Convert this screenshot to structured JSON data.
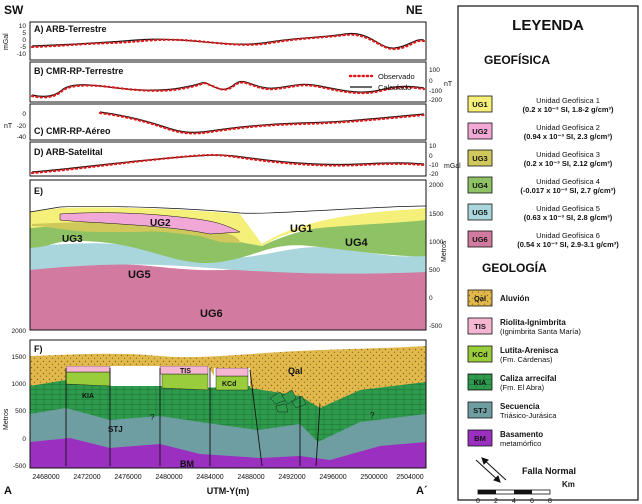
{
  "corners": {
    "left": "SW",
    "right": "NE",
    "bottom_left": "A",
    "bottom_right": "A´"
  },
  "panels": {
    "a": {
      "title": "A) ARB-Terrestre",
      "unit": "mGal",
      "ticks": [
        "10",
        "5",
        "0",
        "-5",
        "-10"
      ]
    },
    "b": {
      "title": "B) CMR-RP-Terrestre",
      "unit": "nT",
      "ticks": [
        "100",
        "0",
        "-100",
        "-200"
      ]
    },
    "c": {
      "title": "C) CMR-RP-Aéreo",
      "unit": "nT",
      "ticks": [
        "0",
        "-20",
        "-40"
      ]
    },
    "d": {
      "title": "D) ARB-Satelital",
      "unit": "mGal",
      "ticks": [
        "10",
        "0",
        "-10",
        "-20"
      ]
    },
    "e": {
      "title": "E)",
      "unit": "Metros",
      "ticks_left": [
        "2000"
      ],
      "ticks_right": [
        "2000",
        "1500",
        "1000",
        "500",
        "0",
        "-500"
      ],
      "labels": [
        "UG1",
        "UG2",
        "UG3",
        "UG4",
        "UG5",
        "UG6"
      ]
    },
    "f": {
      "title": "F)",
      "unit": "Metros",
      "ticks_left": [
        "1500",
        "1000",
        "500",
        "0",
        "-500"
      ],
      "labels": [
        "Qal",
        "TIS",
        "KCd",
        "KIA",
        "STJ",
        "BM"
      ],
      "query": "?"
    }
  },
  "x_axis": {
    "label": "UTM-Y(m)",
    "ticks": [
      "2468000",
      "2472000",
      "2476000",
      "2480000",
      "2484000",
      "2488000",
      "2492000",
      "2496000",
      "2500000",
      "2504000"
    ]
  },
  "legend": {
    "title": "LEYENDA",
    "geofisica_title": "GEOFÍSICA",
    "observed": "Observado",
    "calculated": "Calculado",
    "units": [
      {
        "code": "UG1",
        "line1": "Unidad Geofísica 1",
        "line2": "(0.2 x 10⁻³ SI, 1.8-2 g/cm³)",
        "color": "#f5f07a"
      },
      {
        "code": "UG2",
        "line1": "Unidad Geofísica 2",
        "line2": "(0.94 x 10⁻³ SI, 2.3 g/cm³)",
        "color": "#f2a8d6"
      },
      {
        "code": "UG3",
        "line1": "Unidad Geofísica 3",
        "line2": "(0.2 x 10⁻³ SI, 2.12 g/cm³)",
        "color": "#cfc85a"
      },
      {
        "code": "UG4",
        "line1": "Unidad Geofísica 4",
        "line2": "(-0.017 x 10⁻³ SI, 2.7 g/cm³)",
        "color": "#8fc264"
      },
      {
        "code": "UG5",
        "line1": "Unidad Geofísica 5",
        "line2": "(0.63 x 10⁻³ SI, 2.8 g/cm³)",
        "color": "#a8d6dc"
      },
      {
        "code": "UG6",
        "line1": "Unidad Geofísica 6",
        "line2": "(0.54 x 10⁻³ SI, 2.9-3.1 g/cm³)",
        "color": "#d27aa0"
      }
    ],
    "geologia_title": "GEOLOGÍA",
    "geo": [
      {
        "code": "Qal",
        "line1": "Aluvión",
        "line2": "",
        "color": "#e0b84c"
      },
      {
        "code": "TIS",
        "line1": "Riolita-Ignimbrita",
        "line2": "(Ignimbrita Santa María)",
        "color": "#f4b6d0"
      },
      {
        "code": "KCd",
        "line1": "Lutita-Arenisca",
        "line2": "(Fm. Cárdenas)",
        "color": "#9acd3c"
      },
      {
        "code": "KIA",
        "line1": "Caliza arrecifal",
        "line2": "(Fm. El Abra)",
        "color": "#2e9a4c"
      },
      {
        "code": "STJ",
        "line1": "Secuencia",
        "line2": "Triásico-Jurásica",
        "color": "#6f9ea2"
      },
      {
        "code": "BM",
        "line1": "Basamento",
        "line2": "metamórfico",
        "color": "#9a2fc0"
      }
    ],
    "fault": "Falla Normal",
    "scale_unit": "Km",
    "scale_ticks": [
      "0",
      "2",
      "4",
      "6",
      "8"
    ]
  }
}
